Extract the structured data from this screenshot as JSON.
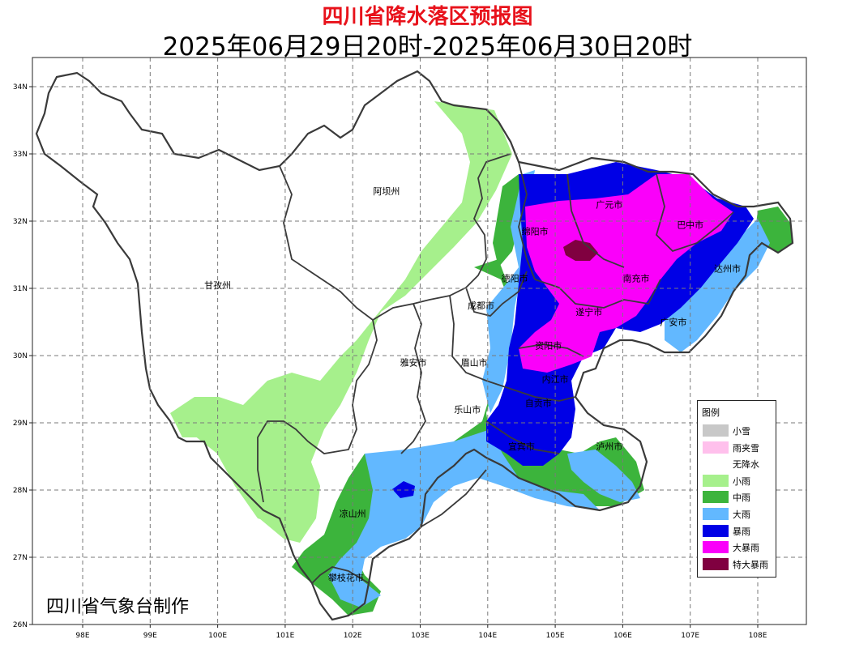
{
  "title": "四川省降水落区预报图",
  "subtitle": "2025年06月29日20时-2025年06月30日20时",
  "credit": "四川省气象台制作",
  "axes": {
    "x_ticks": [
      {
        "value": 98,
        "label": "98E"
      },
      {
        "value": 99,
        "label": "99E"
      },
      {
        "value": 100,
        "label": "100E"
      },
      {
        "value": 101,
        "label": "101E"
      },
      {
        "value": 102,
        "label": "102E"
      },
      {
        "value": 103,
        "label": "103E"
      },
      {
        "value": 104,
        "label": "104E"
      },
      {
        "value": 105,
        "label": "105E"
      },
      {
        "value": 106,
        "label": "106E"
      },
      {
        "value": 107,
        "label": "107E"
      },
      {
        "value": 108,
        "label": "108E"
      }
    ],
    "y_ticks": [
      {
        "value": 34,
        "label": "34N"
      },
      {
        "value": 33,
        "label": "33N"
      },
      {
        "value": 32,
        "label": "32N"
      },
      {
        "value": 31,
        "label": "31N"
      },
      {
        "value": 30,
        "label": "30N"
      },
      {
        "value": 29,
        "label": "29N"
      },
      {
        "value": 28,
        "label": "28N"
      },
      {
        "value": 27,
        "label": "27N"
      },
      {
        "value": 26,
        "label": "26N"
      }
    ],
    "lon_range": [
      97.3,
      108.75
    ],
    "lat_range": [
      26,
      34.4
    ],
    "grid": true
  },
  "legend": {
    "title": "图例",
    "items": [
      {
        "label": "小雪",
        "color": "#c8c8c8"
      },
      {
        "label": "雨夹雪",
        "color": "#ffc0ec"
      },
      {
        "label": "无降水",
        "color": "#ffffff"
      },
      {
        "label": "小雨",
        "color": "#a6f08c"
      },
      {
        "label": "中雨",
        "color": "#3cb43c"
      },
      {
        "label": "大雨",
        "color": "#62b8ff"
      },
      {
        "label": "暴雨",
        "color": "#0000e6"
      },
      {
        "label": "大暴雨",
        "color": "#fa00fa"
      },
      {
        "label": "特大暴雨",
        "color": "#800040"
      }
    ]
  },
  "cities": [
    {
      "name": "阿坝州",
      "lon": 102.5,
      "lat": 32.4
    },
    {
      "name": "甘孜州",
      "lon": 100.0,
      "lat": 31.0
    },
    {
      "name": "广元市",
      "lon": 105.8,
      "lat": 32.2
    },
    {
      "name": "巴中市",
      "lon": 107.0,
      "lat": 31.9
    },
    {
      "name": "绵阳市",
      "lon": 104.7,
      "lat": 31.8
    },
    {
      "name": "达州市",
      "lon": 107.55,
      "lat": 31.25
    },
    {
      "name": "德阳市",
      "lon": 104.4,
      "lat": 31.1
    },
    {
      "name": "南充市",
      "lon": 106.2,
      "lat": 31.1
    },
    {
      "name": "成都市",
      "lon": 103.9,
      "lat": 30.7
    },
    {
      "name": "遂宁市",
      "lon": 105.5,
      "lat": 30.6
    },
    {
      "name": "广安市",
      "lon": 106.75,
      "lat": 30.45
    },
    {
      "name": "资阳市",
      "lon": 104.9,
      "lat": 30.1
    },
    {
      "name": "雅安市",
      "lon": 102.9,
      "lat": 29.85
    },
    {
      "name": "眉山市",
      "lon": 103.8,
      "lat": 29.85
    },
    {
      "name": "内江市",
      "lon": 105.0,
      "lat": 29.6
    },
    {
      "name": "乐山市",
      "lon": 103.7,
      "lat": 29.15
    },
    {
      "name": "自贡市",
      "lon": 104.75,
      "lat": 29.25
    },
    {
      "name": "宜宾市",
      "lon": 104.5,
      "lat": 28.6
    },
    {
      "name": "泸州市",
      "lon": 105.8,
      "lat": 28.6
    },
    {
      "name": "凉山州",
      "lon": 102.0,
      "lat": 27.6
    },
    {
      "name": "攀枝花市",
      "lon": 101.9,
      "lat": 26.65
    }
  ]
}
